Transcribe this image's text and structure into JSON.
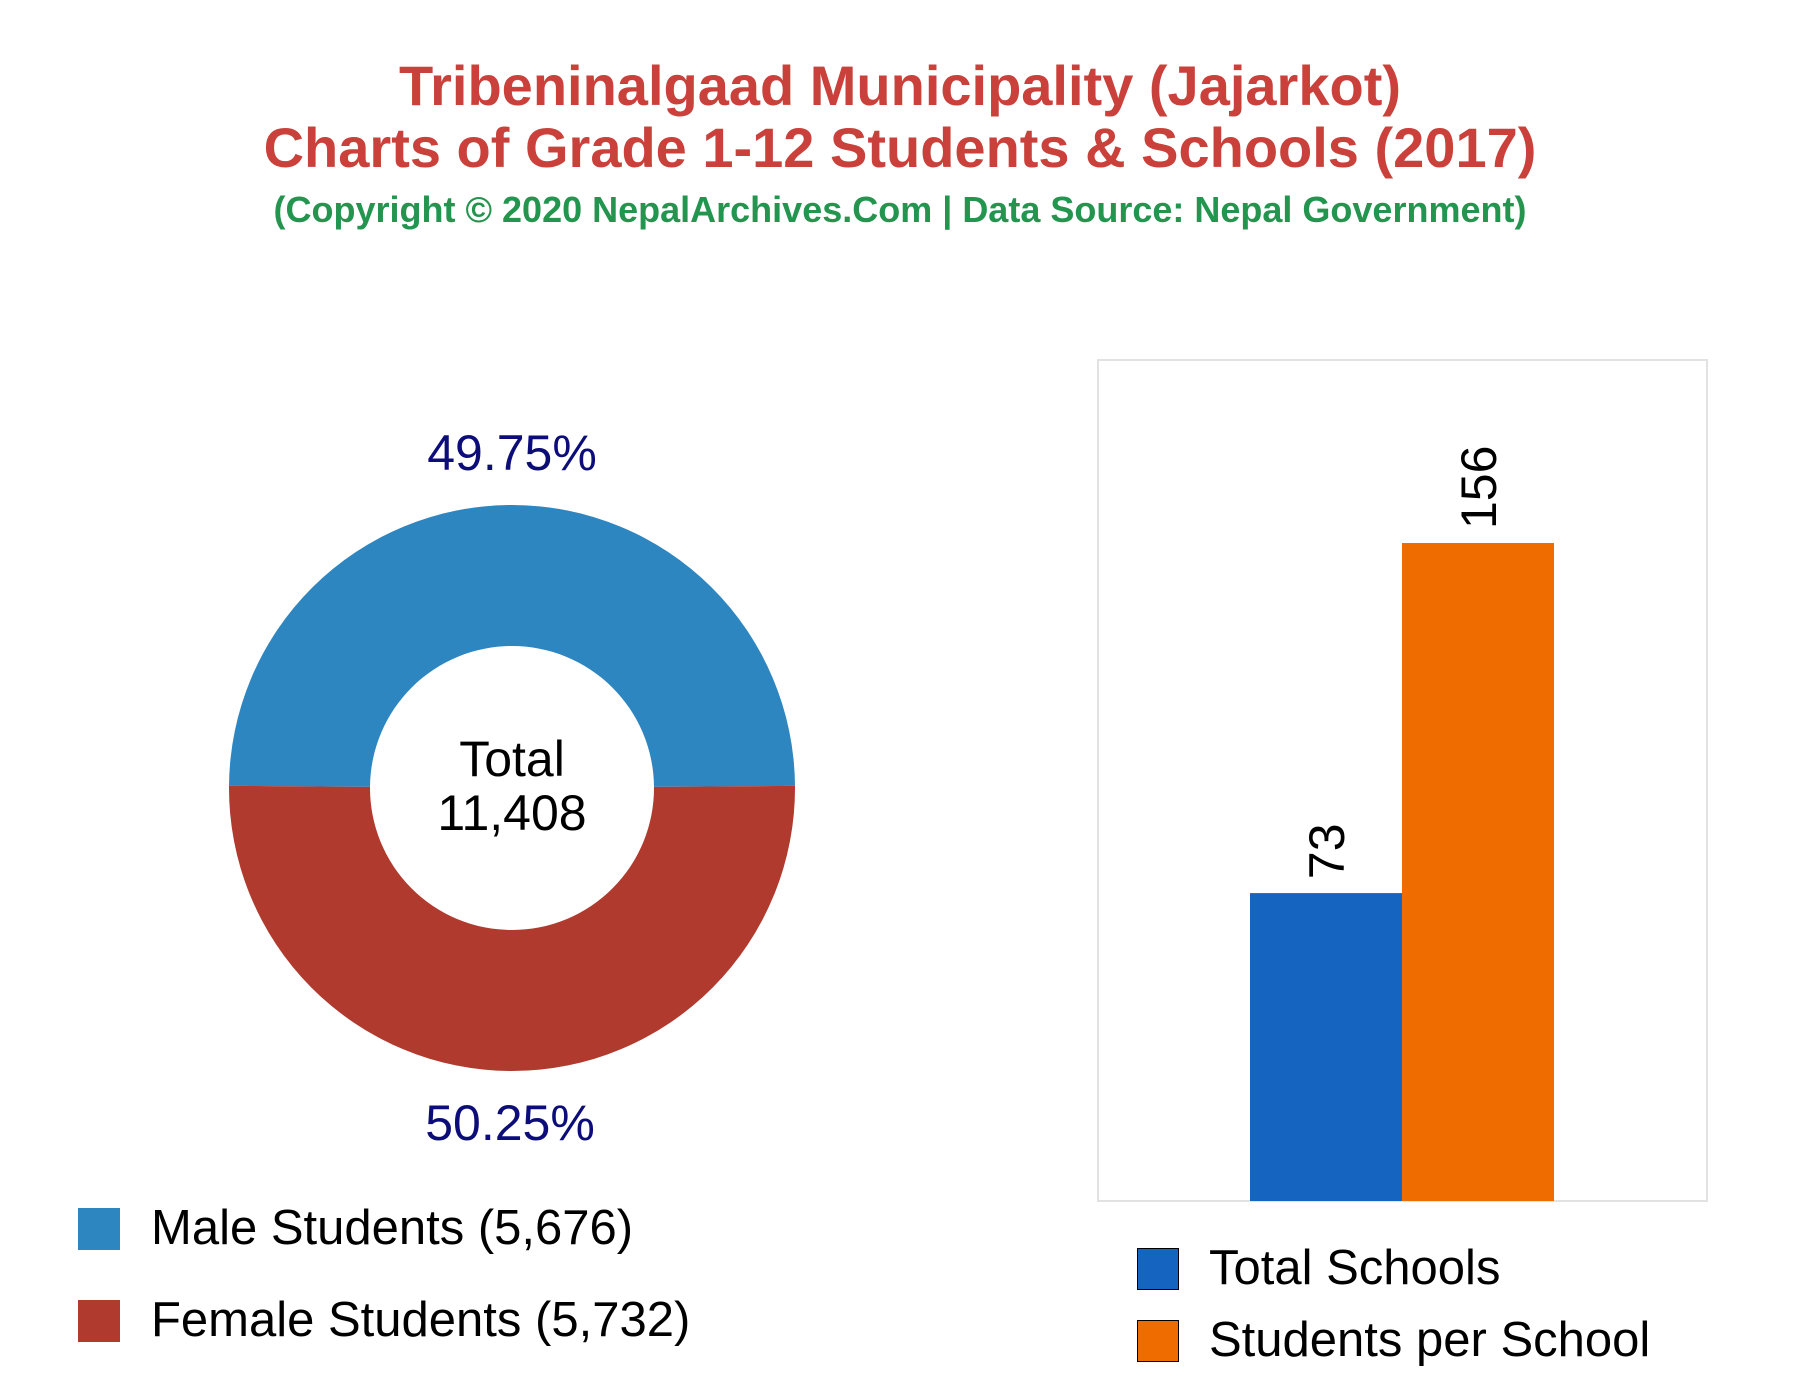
{
  "header": {
    "title_line1": "Tribeninalgaad Municipality (Jajarkot)",
    "title_line2": "Charts of Grade 1-12 Students & Schools (2017)",
    "subtitle": "(Copyright © 2020 NepalArchives.Com | Data Source: Nepal Government)"
  },
  "colors": {
    "title": "#c9413a",
    "subtitle": "#23954f",
    "male": "#2e86c1",
    "female": "#b03a2e",
    "total_schools": "#1565c0",
    "students_per_school": "#ef6c00",
    "pct_label": "#0d0d7a"
  },
  "chart_data": [
    {
      "type": "pie",
      "variant": "donut",
      "center_label": "Total",
      "center_value": "11,408",
      "slices": [
        {
          "name": "Male Students",
          "value": 5676,
          "percent_label": "49.75%",
          "legend_label": "Male Students (5,676)"
        },
        {
          "name": "Female Students",
          "value": 5732,
          "percent_label": "50.25%",
          "legend_label": "Female Students (5,732)"
        }
      ],
      "legend_position": "bottom-left"
    },
    {
      "type": "bar",
      "categories": [
        "Total Schools",
        "Students per School"
      ],
      "values": [
        73,
        156
      ],
      "data_labels": [
        "73",
        "156"
      ],
      "legend_position": "bottom"
    }
  ]
}
